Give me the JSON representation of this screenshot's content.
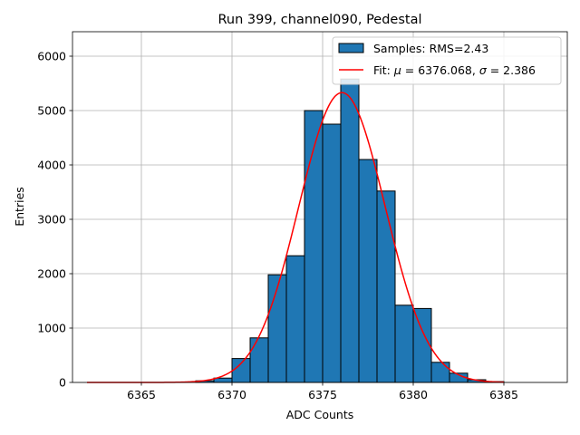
{
  "chart_data": {
    "type": "bar",
    "title": "Run 399, channel090, Pedestal",
    "xlabel": "ADC Counts",
    "ylabel": "Entries",
    "xlim": [
      6361.2,
      6388.5
    ],
    "ylim": [
      0,
      6450
    ],
    "xticks": [
      6365,
      6370,
      6375,
      6380,
      6385
    ],
    "yticks": [
      0,
      1000,
      2000,
      3000,
      4000,
      5000,
      6000
    ],
    "grid": true,
    "legend_position": "top-right",
    "histogram": {
      "name": "Samples: RMS=2.43",
      "color": "#1f77b4",
      "bin_left_edges": [
        6368,
        6369,
        6370,
        6371,
        6372,
        6373,
        6374,
        6375,
        6376,
        6377,
        6378,
        6379,
        6380,
        6381,
        6382,
        6383,
        6384
      ],
      "bin_width": 1,
      "counts": [
        30,
        80,
        440,
        820,
        1980,
        2330,
        5000,
        4750,
        5580,
        4100,
        3520,
        1420,
        1360,
        370,
        170,
        50,
        15
      ]
    },
    "fit": {
      "name": "Fit: μ = 6376.068, σ = 2.386",
      "legend_prefix": "Fit: ",
      "legend_mu": "μ",
      "legend_mu_value": " = 6376.068, ",
      "legend_sigma": "σ",
      "legend_sigma_value": " = 2.386",
      "color": "#ff0000",
      "mu": 6376.068,
      "sigma": 2.386,
      "amplitude": 5330,
      "x_range": [
        6362,
        6385
      ]
    }
  }
}
